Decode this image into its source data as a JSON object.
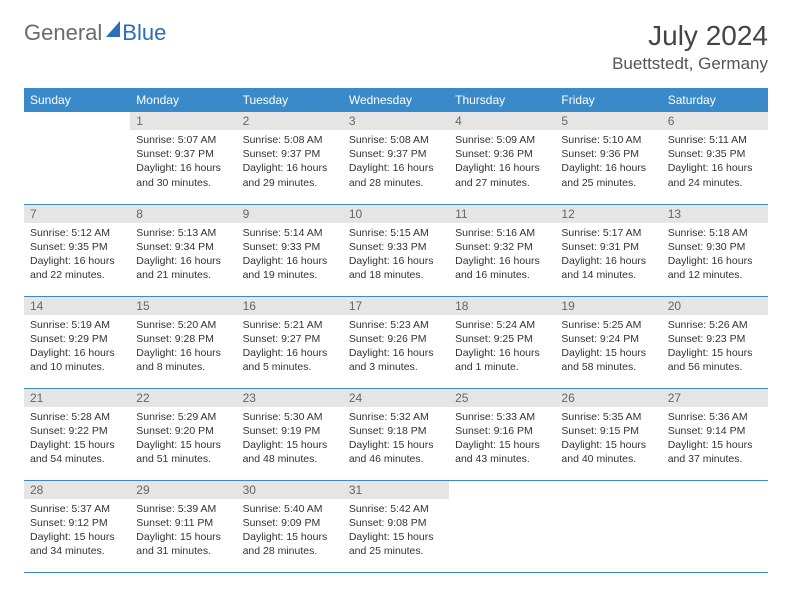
{
  "logo": {
    "part1": "General",
    "part2": "Blue"
  },
  "title": "July 2024",
  "location": "Buettstedt, Germany",
  "colors": {
    "header_bg": "#3a8ac9",
    "header_fg": "#ffffff",
    "daynum_bg": "#e5e5e5",
    "daynum_fg": "#666666",
    "rule": "#3a8ac9",
    "text": "#333333",
    "logo_gray": "#6a6a6a",
    "logo_blue": "#2a6db8"
  },
  "weekdays": [
    "Sunday",
    "Monday",
    "Tuesday",
    "Wednesday",
    "Thursday",
    "Friday",
    "Saturday"
  ],
  "weeks": [
    [
      null,
      {
        "day": "1",
        "sunrise": "Sunrise: 5:07 AM",
        "sunset": "Sunset: 9:37 PM",
        "daylight": "Daylight: 16 hours and 30 minutes."
      },
      {
        "day": "2",
        "sunrise": "Sunrise: 5:08 AM",
        "sunset": "Sunset: 9:37 PM",
        "daylight": "Daylight: 16 hours and 29 minutes."
      },
      {
        "day": "3",
        "sunrise": "Sunrise: 5:08 AM",
        "sunset": "Sunset: 9:37 PM",
        "daylight": "Daylight: 16 hours and 28 minutes."
      },
      {
        "day": "4",
        "sunrise": "Sunrise: 5:09 AM",
        "sunset": "Sunset: 9:36 PM",
        "daylight": "Daylight: 16 hours and 27 minutes."
      },
      {
        "day": "5",
        "sunrise": "Sunrise: 5:10 AM",
        "sunset": "Sunset: 9:36 PM",
        "daylight": "Daylight: 16 hours and 25 minutes."
      },
      {
        "day": "6",
        "sunrise": "Sunrise: 5:11 AM",
        "sunset": "Sunset: 9:35 PM",
        "daylight": "Daylight: 16 hours and 24 minutes."
      }
    ],
    [
      {
        "day": "7",
        "sunrise": "Sunrise: 5:12 AM",
        "sunset": "Sunset: 9:35 PM",
        "daylight": "Daylight: 16 hours and 22 minutes."
      },
      {
        "day": "8",
        "sunrise": "Sunrise: 5:13 AM",
        "sunset": "Sunset: 9:34 PM",
        "daylight": "Daylight: 16 hours and 21 minutes."
      },
      {
        "day": "9",
        "sunrise": "Sunrise: 5:14 AM",
        "sunset": "Sunset: 9:33 PM",
        "daylight": "Daylight: 16 hours and 19 minutes."
      },
      {
        "day": "10",
        "sunrise": "Sunrise: 5:15 AM",
        "sunset": "Sunset: 9:33 PM",
        "daylight": "Daylight: 16 hours and 18 minutes."
      },
      {
        "day": "11",
        "sunrise": "Sunrise: 5:16 AM",
        "sunset": "Sunset: 9:32 PM",
        "daylight": "Daylight: 16 hours and 16 minutes."
      },
      {
        "day": "12",
        "sunrise": "Sunrise: 5:17 AM",
        "sunset": "Sunset: 9:31 PM",
        "daylight": "Daylight: 16 hours and 14 minutes."
      },
      {
        "day": "13",
        "sunrise": "Sunrise: 5:18 AM",
        "sunset": "Sunset: 9:30 PM",
        "daylight": "Daylight: 16 hours and 12 minutes."
      }
    ],
    [
      {
        "day": "14",
        "sunrise": "Sunrise: 5:19 AM",
        "sunset": "Sunset: 9:29 PM",
        "daylight": "Daylight: 16 hours and 10 minutes."
      },
      {
        "day": "15",
        "sunrise": "Sunrise: 5:20 AM",
        "sunset": "Sunset: 9:28 PM",
        "daylight": "Daylight: 16 hours and 8 minutes."
      },
      {
        "day": "16",
        "sunrise": "Sunrise: 5:21 AM",
        "sunset": "Sunset: 9:27 PM",
        "daylight": "Daylight: 16 hours and 5 minutes."
      },
      {
        "day": "17",
        "sunrise": "Sunrise: 5:23 AM",
        "sunset": "Sunset: 9:26 PM",
        "daylight": "Daylight: 16 hours and 3 minutes."
      },
      {
        "day": "18",
        "sunrise": "Sunrise: 5:24 AM",
        "sunset": "Sunset: 9:25 PM",
        "daylight": "Daylight: 16 hours and 1 minute."
      },
      {
        "day": "19",
        "sunrise": "Sunrise: 5:25 AM",
        "sunset": "Sunset: 9:24 PM",
        "daylight": "Daylight: 15 hours and 58 minutes."
      },
      {
        "day": "20",
        "sunrise": "Sunrise: 5:26 AM",
        "sunset": "Sunset: 9:23 PM",
        "daylight": "Daylight: 15 hours and 56 minutes."
      }
    ],
    [
      {
        "day": "21",
        "sunrise": "Sunrise: 5:28 AM",
        "sunset": "Sunset: 9:22 PM",
        "daylight": "Daylight: 15 hours and 54 minutes."
      },
      {
        "day": "22",
        "sunrise": "Sunrise: 5:29 AM",
        "sunset": "Sunset: 9:20 PM",
        "daylight": "Daylight: 15 hours and 51 minutes."
      },
      {
        "day": "23",
        "sunrise": "Sunrise: 5:30 AM",
        "sunset": "Sunset: 9:19 PM",
        "daylight": "Daylight: 15 hours and 48 minutes."
      },
      {
        "day": "24",
        "sunrise": "Sunrise: 5:32 AM",
        "sunset": "Sunset: 9:18 PM",
        "daylight": "Daylight: 15 hours and 46 minutes."
      },
      {
        "day": "25",
        "sunrise": "Sunrise: 5:33 AM",
        "sunset": "Sunset: 9:16 PM",
        "daylight": "Daylight: 15 hours and 43 minutes."
      },
      {
        "day": "26",
        "sunrise": "Sunrise: 5:35 AM",
        "sunset": "Sunset: 9:15 PM",
        "daylight": "Daylight: 15 hours and 40 minutes."
      },
      {
        "day": "27",
        "sunrise": "Sunrise: 5:36 AM",
        "sunset": "Sunset: 9:14 PM",
        "daylight": "Daylight: 15 hours and 37 minutes."
      }
    ],
    [
      {
        "day": "28",
        "sunrise": "Sunrise: 5:37 AM",
        "sunset": "Sunset: 9:12 PM",
        "daylight": "Daylight: 15 hours and 34 minutes."
      },
      {
        "day": "29",
        "sunrise": "Sunrise: 5:39 AM",
        "sunset": "Sunset: 9:11 PM",
        "daylight": "Daylight: 15 hours and 31 minutes."
      },
      {
        "day": "30",
        "sunrise": "Sunrise: 5:40 AM",
        "sunset": "Sunset: 9:09 PM",
        "daylight": "Daylight: 15 hours and 28 minutes."
      },
      {
        "day": "31",
        "sunrise": "Sunrise: 5:42 AM",
        "sunset": "Sunset: 9:08 PM",
        "daylight": "Daylight: 15 hours and 25 minutes."
      },
      null,
      null,
      null
    ]
  ]
}
